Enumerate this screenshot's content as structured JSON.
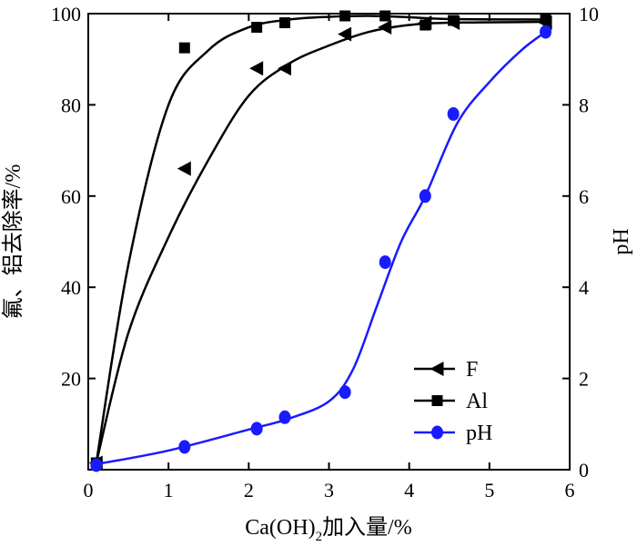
{
  "chart_data": {
    "type": "line",
    "x": [
      0.1,
      1.2,
      2.1,
      2.45,
      3.2,
      3.7,
      4.2,
      4.55,
      5.7
    ],
    "x_range": [
      0,
      6
    ],
    "x_ticks": [
      "0",
      "1",
      "2",
      "3",
      "4",
      "5",
      "6"
    ],
    "xlabel_main": "Ca(OH)",
    "xlabel_sub": "2",
    "xlabel_tail": "加入量/%",
    "y_left_range": [
      0,
      100
    ],
    "y_left_ticks": [
      "20",
      "40",
      "60",
      "80",
      "100"
    ],
    "ylabel_left": "氟、铝去除率/%",
    "y_right_range": [
      0,
      10
    ],
    "y_right_ticks": [
      "0",
      "2",
      "4",
      "6",
      "8",
      "10"
    ],
    "ylabel_right": "pH",
    "legend_position": "bottom-right",
    "grid": false,
    "series": [
      {
        "name": "F",
        "axis": "left",
        "marker": "left-triangle",
        "color": "#000000",
        "points": [
          [
            0.1,
            1.5
          ],
          [
            1.2,
            66
          ],
          [
            2.1,
            88
          ],
          [
            2.45,
            88
          ],
          [
            3.2,
            95.5
          ],
          [
            3.7,
            97
          ],
          [
            4.2,
            98
          ],
          [
            4.55,
            98
          ],
          [
            5.7,
            98
          ]
        ],
        "fit": [
          [
            0.1,
            1.5
          ],
          [
            0.5,
            30
          ],
          [
            1.0,
            51
          ],
          [
            1.5,
            68
          ],
          [
            2.0,
            82
          ],
          [
            2.5,
            89
          ],
          [
            3.0,
            93
          ],
          [
            3.5,
            96
          ],
          [
            4.0,
            97.5
          ],
          [
            4.5,
            98
          ],
          [
            5.7,
            98.2
          ]
        ]
      },
      {
        "name": "Al",
        "axis": "left",
        "marker": "square",
        "color": "#000000",
        "points": [
          [
            0.1,
            1.5
          ],
          [
            1.2,
            92.5
          ],
          [
            2.1,
            97
          ],
          [
            2.45,
            98
          ],
          [
            3.2,
            99.5
          ],
          [
            3.7,
            99.5
          ],
          [
            4.2,
            97.5
          ],
          [
            4.55,
            98.5
          ],
          [
            5.7,
            99
          ]
        ],
        "fit": [
          [
            0.1,
            1.5
          ],
          [
            0.5,
            45
          ],
          [
            1.0,
            80
          ],
          [
            1.5,
            92
          ],
          [
            2.0,
            97
          ],
          [
            2.5,
            98.7
          ],
          [
            3.0,
            99.3
          ],
          [
            3.5,
            99.5
          ],
          [
            4.0,
            99.2
          ],
          [
            4.5,
            98.8
          ],
          [
            5.7,
            98.7
          ]
        ]
      },
      {
        "name": "pH",
        "axis": "right",
        "marker": "circle",
        "color": "#1a1aff",
        "points": [
          [
            0.1,
            0.1
          ],
          [
            1.2,
            0.5
          ],
          [
            2.1,
            0.9
          ],
          [
            2.45,
            1.15
          ],
          [
            3.2,
            1.7
          ],
          [
            3.7,
            4.55
          ],
          [
            4.2,
            6.0
          ],
          [
            4.55,
            7.8
          ],
          [
            5.7,
            9.6
          ]
        ],
        "fit": [
          [
            0.1,
            0.12
          ],
          [
            1.0,
            0.42
          ],
          [
            2.0,
            0.88
          ],
          [
            2.5,
            1.12
          ],
          [
            3.0,
            1.5
          ],
          [
            3.3,
            2.2
          ],
          [
            3.6,
            3.6
          ],
          [
            3.9,
            5.0
          ],
          [
            4.2,
            6.0
          ],
          [
            4.6,
            7.6
          ],
          [
            5.0,
            8.5
          ],
          [
            5.4,
            9.2
          ],
          [
            5.7,
            9.6
          ]
        ]
      }
    ]
  }
}
